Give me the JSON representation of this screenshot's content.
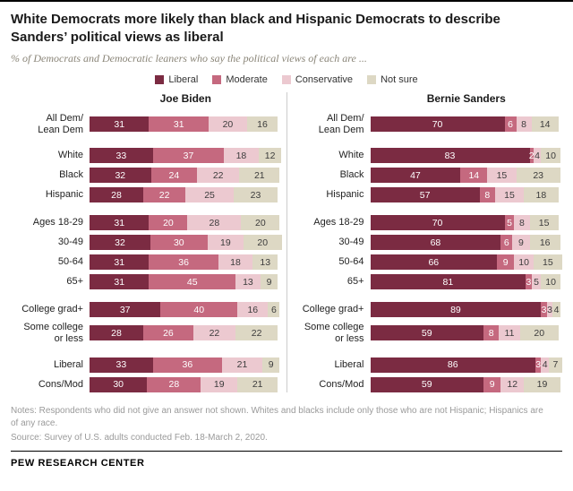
{
  "title": "White Democrats more likely than black and Hispanic Democrats to describe Sanders’ political views as liberal",
  "subtitle": "% of Democrats and Democratic leaners who say the political views of each are ...",
  "legend": [
    {
      "label": "Liberal",
      "color": "#7b2b42"
    },
    {
      "label": "Moderate",
      "color": "#c5697f"
    },
    {
      "label": "Conservative",
      "color": "#ecc9d0"
    },
    {
      "label": "Not sure",
      "color": "#ddd8c4"
    }
  ],
  "chart_data": {
    "type": "bar",
    "orientation": "horizontal",
    "stacked": true,
    "value_unit": "%",
    "xlim": [
      0,
      100
    ],
    "series_names": [
      "Liberal",
      "Moderate",
      "Conservative",
      "Not sure"
    ],
    "panels": [
      {
        "title": "Joe Biden",
        "groups": [
          [
            {
              "label": "All Dem/\nLean Dem",
              "values": [
                31,
                31,
                20,
                16
              ]
            }
          ],
          [
            {
              "label": "White",
              "values": [
                33,
                37,
                18,
                12
              ]
            },
            {
              "label": "Black",
              "values": [
                32,
                24,
                22,
                21
              ]
            },
            {
              "label": "Hispanic",
              "values": [
                28,
                22,
                25,
                23
              ]
            }
          ],
          [
            {
              "label": "Ages 18-29",
              "values": [
                31,
                20,
                28,
                20
              ]
            },
            {
              "label": "30-49",
              "values": [
                32,
                30,
                19,
                20
              ]
            },
            {
              "label": "50-64",
              "values": [
                31,
                36,
                18,
                13
              ]
            },
            {
              "label": "65+",
              "values": [
                31,
                45,
                13,
                9
              ]
            }
          ],
          [
            {
              "label": "College grad+",
              "values": [
                37,
                40,
                16,
                6
              ]
            },
            {
              "label": "Some college\nor less",
              "values": [
                28,
                26,
                22,
                22
              ]
            }
          ],
          [
            {
              "label": "Liberal",
              "values": [
                33,
                36,
                21,
                9
              ]
            },
            {
              "label": "Cons/Mod",
              "values": [
                30,
                28,
                19,
                21
              ]
            }
          ]
        ]
      },
      {
        "title": "Bernie Sanders",
        "groups": [
          [
            {
              "label": "All Dem/\nLean Dem",
              "values": [
                70,
                6,
                8,
                14
              ]
            }
          ],
          [
            {
              "label": "White",
              "values": [
                83,
                2,
                4,
                10
              ]
            },
            {
              "label": "Black",
              "values": [
                47,
                14,
                15,
                23
              ]
            },
            {
              "label": "Hispanic",
              "values": [
                57,
                8,
                15,
                18
              ]
            }
          ],
          [
            {
              "label": "Ages 18-29",
              "values": [
                70,
                5,
                8,
                15
              ]
            },
            {
              "label": "30-49",
              "values": [
                68,
                6,
                9,
                16
              ]
            },
            {
              "label": "50-64",
              "values": [
                66,
                9,
                10,
                15
              ]
            },
            {
              "label": "65+",
              "values": [
                81,
                3,
                5,
                10
              ]
            }
          ],
          [
            {
              "label": "College grad+",
              "values": [
                89,
                3,
                3,
                4
              ]
            },
            {
              "label": "Some college\nor less",
              "values": [
                59,
                8,
                11,
                20
              ]
            }
          ],
          [
            {
              "label": "Liberal",
              "values": [
                86,
                3,
                4,
                7
              ]
            },
            {
              "label": "Cons/Mod",
              "values": [
                59,
                9,
                12,
                19
              ]
            }
          ]
        ]
      }
    ]
  },
  "notes": "Notes: Respondents who did not give an answer not shown. Whites and blacks include only those who are not Hispanic; Hispanics are of any race.",
  "source": "Source: Survey of U.S. adults conducted Feb. 18-March 2, 2020.",
  "footer": "PEW RESEARCH CENTER"
}
